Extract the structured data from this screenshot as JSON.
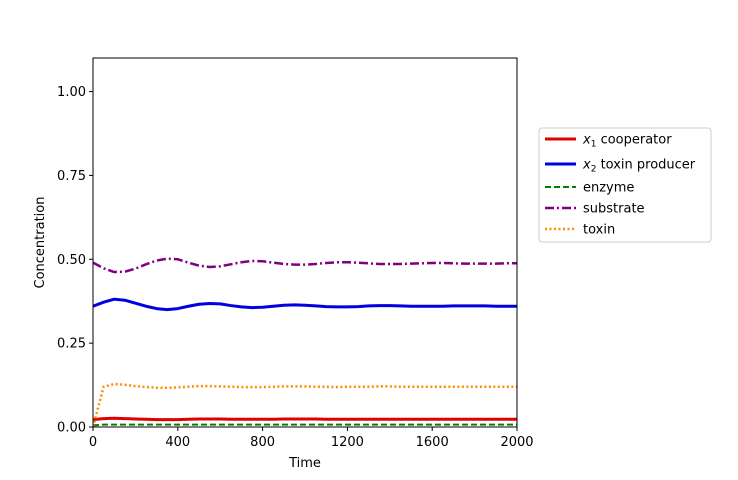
{
  "chart_data": {
    "type": "line",
    "title": "",
    "xlabel": "Time",
    "ylabel": "Concentration",
    "xlim": [
      0,
      2000
    ],
    "ylim": [
      0,
      1.1
    ],
    "xticks": [
      0,
      400,
      800,
      1200,
      1600,
      2000
    ],
    "xtick_labels": [
      "0",
      "400",
      "800",
      "1200",
      "1600",
      "2000"
    ],
    "yticks": [
      0,
      0.25,
      0.5,
      0.75,
      1.0
    ],
    "ytick_labels": [
      "0.00",
      "0.25",
      "0.50",
      "0.75",
      "1.00"
    ],
    "grid": false,
    "legend_position": "right, outside plot",
    "x": [
      0,
      50,
      100,
      150,
      200,
      250,
      300,
      350,
      400,
      450,
      500,
      550,
      600,
      650,
      700,
      750,
      800,
      850,
      900,
      950,
      1000,
      1050,
      1100,
      1150,
      1200,
      1250,
      1300,
      1350,
      1400,
      1450,
      1500,
      1550,
      1600,
      1650,
      1700,
      1750,
      1800,
      1850,
      1900,
      1950,
      2000
    ],
    "series": [
      {
        "name_math": "x",
        "name_sub": "1",
        "name_rest": " cooperator",
        "color": "#e00000",
        "dash": "solid",
        "width": 3,
        "values": [
          0.022,
          0.025,
          0.026,
          0.025,
          0.024,
          0.023,
          0.022,
          0.022,
          0.022,
          0.023,
          0.024,
          0.024,
          0.024,
          0.023,
          0.023,
          0.023,
          0.023,
          0.023,
          0.024,
          0.024,
          0.024,
          0.024,
          0.023,
          0.023,
          0.023,
          0.023,
          0.023,
          0.023,
          0.023,
          0.023,
          0.023,
          0.023,
          0.023,
          0.023,
          0.023,
          0.023,
          0.023,
          0.023,
          0.023,
          0.023,
          0.023
        ]
      },
      {
        "name_math": "x",
        "name_sub": "2",
        "name_rest": " toxin producer",
        "color": "#0000e0",
        "dash": "solid",
        "width": 3,
        "values": [
          0.36,
          0.372,
          0.381,
          0.378,
          0.369,
          0.36,
          0.353,
          0.35,
          0.353,
          0.36,
          0.366,
          0.368,
          0.367,
          0.362,
          0.358,
          0.356,
          0.357,
          0.36,
          0.363,
          0.364,
          0.363,
          0.361,
          0.359,
          0.358,
          0.358,
          0.359,
          0.361,
          0.362,
          0.362,
          0.361,
          0.36,
          0.36,
          0.36,
          0.36,
          0.361,
          0.361,
          0.361,
          0.361,
          0.36,
          0.36,
          0.36
        ]
      },
      {
        "name": "enzyme",
        "color": "#008000",
        "dash": "dashed",
        "width": 2,
        "values": [
          0.005,
          0.007,
          0.007,
          0.007,
          0.007,
          0.007,
          0.007,
          0.007,
          0.007,
          0.007,
          0.007,
          0.007,
          0.007,
          0.007,
          0.007,
          0.007,
          0.007,
          0.007,
          0.007,
          0.007,
          0.007,
          0.007,
          0.007,
          0.007,
          0.007,
          0.007,
          0.007,
          0.007,
          0.007,
          0.007,
          0.007,
          0.007,
          0.007,
          0.007,
          0.007,
          0.007,
          0.007,
          0.007,
          0.007,
          0.007,
          0.007
        ]
      },
      {
        "name": "substrate",
        "color": "#800080",
        "dash": "dashdot",
        "width": 2.5,
        "values": [
          0.49,
          0.473,
          0.462,
          0.463,
          0.472,
          0.485,
          0.496,
          0.502,
          0.5,
          0.49,
          0.481,
          0.477,
          0.479,
          0.485,
          0.491,
          0.495,
          0.494,
          0.49,
          0.486,
          0.484,
          0.484,
          0.486,
          0.489,
          0.491,
          0.491,
          0.49,
          0.488,
          0.486,
          0.486,
          0.486,
          0.487,
          0.488,
          0.489,
          0.489,
          0.488,
          0.487,
          0.487,
          0.487,
          0.487,
          0.488,
          0.488
        ]
      },
      {
        "name": "toxin",
        "color": "#ff8c00",
        "dash": "dotted",
        "width": 2.5,
        "values": [
          0.0,
          0.12,
          0.128,
          0.126,
          0.122,
          0.119,
          0.117,
          0.117,
          0.118,
          0.12,
          0.122,
          0.122,
          0.121,
          0.12,
          0.119,
          0.119,
          0.119,
          0.12,
          0.121,
          0.121,
          0.121,
          0.12,
          0.12,
          0.119,
          0.12,
          0.12,
          0.12,
          0.121,
          0.121,
          0.12,
          0.12,
          0.12,
          0.12,
          0.12,
          0.12,
          0.12,
          0.12,
          0.12,
          0.12,
          0.12,
          0.12
        ]
      }
    ]
  }
}
